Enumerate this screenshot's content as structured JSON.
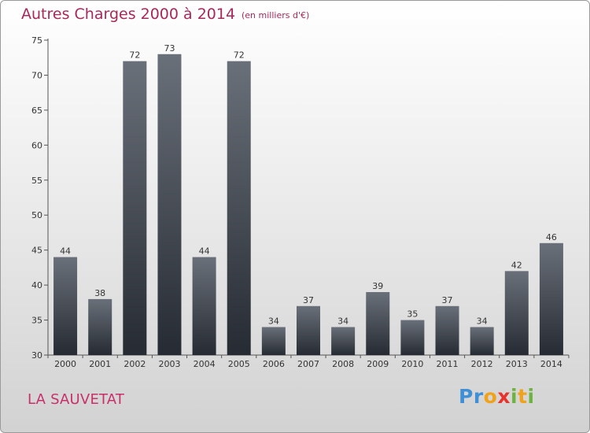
{
  "title": "Autres Charges 2000 à 2014",
  "subtitle": "(en milliers d'€)",
  "commune": "LA SAUVETAT",
  "logo": {
    "text": "Proxiti",
    "letters": [
      "P",
      "r",
      "o",
      "x",
      "i",
      "t",
      "i"
    ]
  },
  "colors": {
    "title": "#a8285a",
    "bar_top": "#6a7079",
    "bar_bottom": "#262b33"
  },
  "chart_data": {
    "type": "bar",
    "categories": [
      "2000",
      "2001",
      "2002",
      "2003",
      "2004",
      "2005",
      "2006",
      "2007",
      "2008",
      "2009",
      "2010",
      "2011",
      "2012",
      "2013",
      "2014"
    ],
    "values": [
      44,
      38,
      72,
      73,
      44,
      72,
      34,
      37,
      34,
      39,
      35,
      37,
      34,
      42,
      46
    ],
    "ylim": [
      30,
      75
    ],
    "yticks": [
      30,
      35,
      40,
      45,
      50,
      55,
      60,
      65,
      70,
      75
    ],
    "grid": false,
    "title": "Autres Charges 2000 à 2014",
    "xlabel": "",
    "ylabel": ""
  }
}
